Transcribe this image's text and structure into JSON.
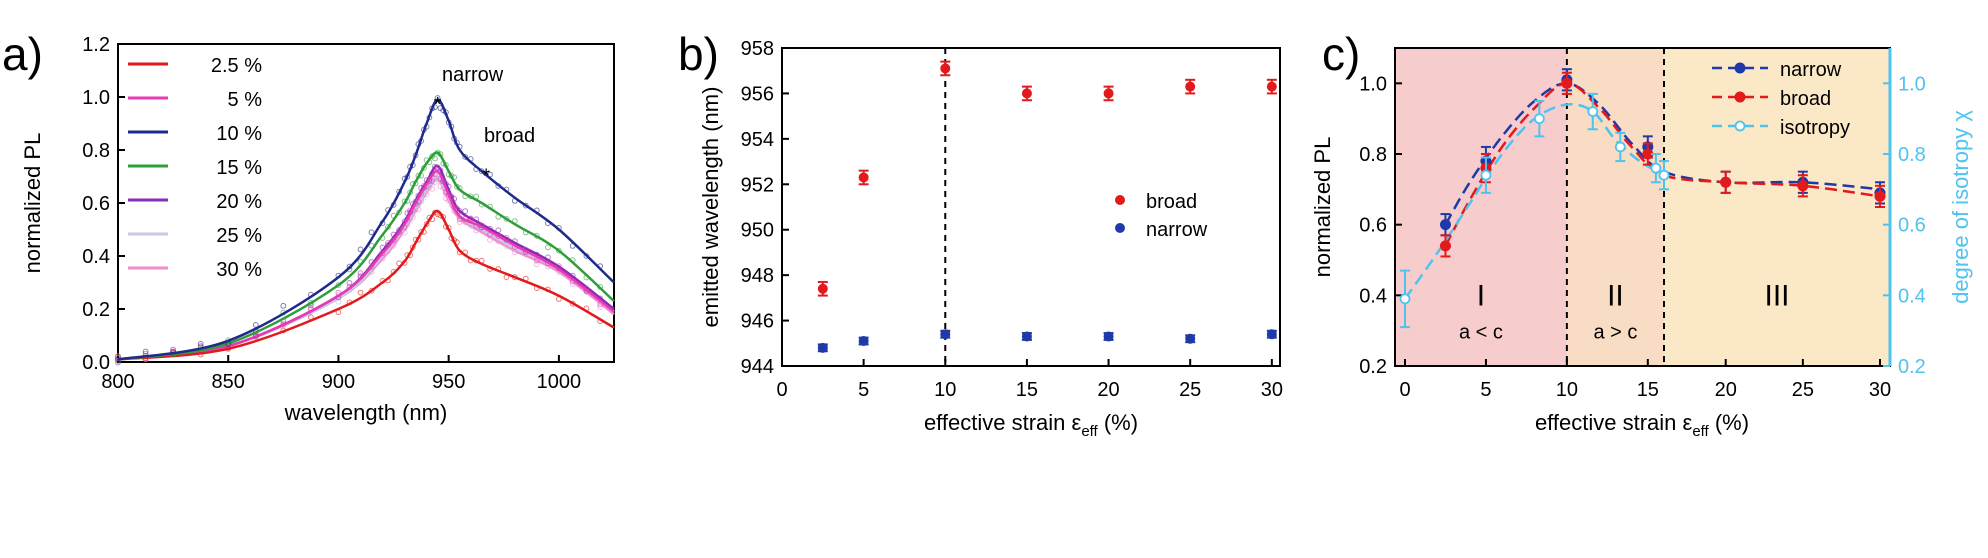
{
  "colors": {
    "red": "#e31a1c",
    "blue": "#1f3aa8",
    "light_blue": "#4fc3f0",
    "region_I": "#f7cccc",
    "region_II": "#f8dcc3",
    "region_III": "#fae8c6"
  },
  "chart_data": [
    {
      "panel": "a)",
      "type": "line",
      "xlabel": "wavelength (nm)",
      "ylabel": "normalized PL",
      "xlim": [
        800,
        1025
      ],
      "ylim": [
        0.0,
        1.2
      ],
      "xticks": [
        "800",
        "850",
        "900",
        "950",
        "1000"
      ],
      "yticks": [
        "0.0",
        "0.2",
        "0.4",
        "0.6",
        "0.8",
        "1.0",
        "1.2"
      ],
      "legend_placement": "top-left",
      "series": [
        {
          "name": "2.5 %",
          "color": "#e31a1c",
          "x": [
            800,
            850,
            900,
            920,
            930,
            935,
            940,
            945,
            950,
            955,
            965,
            980,
            1000,
            1025
          ],
          "y": [
            0.01,
            0.05,
            0.2,
            0.3,
            0.38,
            0.45,
            0.52,
            0.57,
            0.5,
            0.42,
            0.37,
            0.32,
            0.25,
            0.13
          ]
        },
        {
          "name": "5 %",
          "color": "#e83ab4",
          "x": [
            800,
            850,
            900,
            920,
            930,
            935,
            940,
            945,
            950,
            955,
            965,
            980,
            1000,
            1025
          ],
          "y": [
            0.01,
            0.06,
            0.25,
            0.41,
            0.52,
            0.6,
            0.67,
            0.72,
            0.63,
            0.55,
            0.51,
            0.44,
            0.35,
            0.19
          ]
        },
        {
          "name": "10 %",
          "color": "#1f2a8c",
          "x": [
            800,
            850,
            900,
            920,
            930,
            935,
            940,
            945,
            950,
            955,
            965,
            980,
            1000,
            1025
          ],
          "y": [
            0.01,
            0.08,
            0.32,
            0.53,
            0.68,
            0.78,
            0.9,
            0.99,
            0.91,
            0.8,
            0.72,
            0.62,
            0.5,
            0.3
          ]
        },
        {
          "name": "15 %",
          "color": "#2e9e3a",
          "x": [
            800,
            850,
            900,
            920,
            930,
            935,
            940,
            945,
            950,
            955,
            965,
            980,
            1000,
            1025
          ],
          "y": [
            0.01,
            0.07,
            0.29,
            0.48,
            0.6,
            0.68,
            0.75,
            0.79,
            0.72,
            0.65,
            0.6,
            0.52,
            0.42,
            0.23
          ]
        },
        {
          "name": "20 %",
          "color": "#8a2bb5",
          "x": [
            800,
            850,
            900,
            920,
            930,
            935,
            940,
            945,
            950,
            955,
            965,
            980,
            1000,
            1025
          ],
          "y": [
            0.01,
            0.06,
            0.25,
            0.42,
            0.53,
            0.61,
            0.68,
            0.74,
            0.65,
            0.57,
            0.52,
            0.45,
            0.36,
            0.2
          ]
        },
        {
          "name": "25 %",
          "color": "#c7c9e3",
          "x": [
            800,
            850,
            900,
            920,
            930,
            935,
            940,
            945,
            950,
            955,
            965,
            980,
            1000,
            1025
          ],
          "y": [
            0.01,
            0.06,
            0.24,
            0.4,
            0.51,
            0.58,
            0.65,
            0.7,
            0.62,
            0.55,
            0.5,
            0.43,
            0.35,
            0.19
          ]
        },
        {
          "name": "30 %",
          "color": "#f28bd2",
          "x": [
            800,
            850,
            900,
            920,
            930,
            935,
            940,
            945,
            950,
            955,
            965,
            980,
            1000,
            1025
          ],
          "y": [
            0.01,
            0.06,
            0.24,
            0.39,
            0.5,
            0.57,
            0.64,
            0.69,
            0.61,
            0.54,
            0.49,
            0.42,
            0.34,
            0.18
          ]
        }
      ],
      "annotations": [
        {
          "text": "narrow",
          "x": 947,
          "y": 1.06
        },
        {
          "text": "broad",
          "x": 966,
          "y": 0.83
        },
        {
          "text": "*",
          "x": 945,
          "y": 1.0
        },
        {
          "text": "*",
          "x": 967,
          "y": 0.73
        }
      ]
    },
    {
      "panel": "b)",
      "type": "scatter",
      "xlabel": "effective strain ε",
      "xlabel_sub": "eff",
      "xlabel_unit": " (%)",
      "ylabel": "emitted wavelength (nm)",
      "xlim": [
        0,
        30.5
      ],
      "ylim": [
        944,
        958
      ],
      "xticks": [
        "0",
        "5",
        "10",
        "15",
        "20",
        "25",
        "30"
      ],
      "yticks": [
        "944",
        "946",
        "948",
        "950",
        "952",
        "954",
        "956",
        "958"
      ],
      "vline_x": 10,
      "legend_placement": "center-right",
      "series": [
        {
          "name": "broad",
          "color": "#e31a1c",
          "x": [
            2.5,
            5,
            10,
            15,
            20,
            25,
            30
          ],
          "y": [
            947.4,
            952.3,
            957.1,
            956.0,
            956.0,
            956.3,
            956.3
          ],
          "err": [
            0.3,
            0.3,
            0.3,
            0.3,
            0.3,
            0.3,
            0.3
          ]
        },
        {
          "name": "narrow",
          "color": "#1f3aa8",
          "x": [
            2.5,
            5,
            10,
            15,
            20,
            25,
            30
          ],
          "y": [
            944.8,
            945.1,
            945.4,
            945.3,
            945.3,
            945.2,
            945.4
          ],
          "err": [
            0.15,
            0.15,
            0.15,
            0.15,
            0.15,
            0.15,
            0.15
          ]
        }
      ]
    },
    {
      "panel": "c)",
      "type": "scatter",
      "xlabel": "effective strain ε",
      "xlabel_sub": "eff",
      "xlabel_unit": " (%)",
      "ylabel": "normalized PL",
      "y2label": "degree of isotropy χ",
      "xlim": [
        -0.5,
        30.5
      ],
      "ylim": [
        0.2,
        1.1
      ],
      "y2lim": [
        0.2,
        1.1
      ],
      "xticks": [
        "0",
        "5",
        "10",
        "15",
        "20",
        "25",
        "30"
      ],
      "xtick_positions": [
        0,
        5,
        10,
        15,
        20,
        25,
        30
      ],
      "xtick_scale": "piecewise: 0-16 linear, 16-30 compressed",
      "yticks": [
        "0.2",
        "0.4",
        "0.6",
        "0.8",
        "1.0"
      ],
      "y2ticks": [
        "0.2",
        "0.4",
        "0.6",
        "0.8",
        "1.0"
      ],
      "vlines_x": [
        10,
        16
      ],
      "regions": [
        {
          "label": "I",
          "sublabel": "a < c",
          "x0": -0.5,
          "x1": 10
        },
        {
          "label": "II",
          "sublabel": "a > c",
          "x0": 10,
          "x1": 16
        },
        {
          "label": "III",
          "sublabel": "",
          "x0": 16,
          "x1": 30.5
        }
      ],
      "legend_placement": "top-right",
      "series": [
        {
          "name": "narrow",
          "color": "#1f3aa8",
          "x": [
            2.5,
            5,
            10,
            15,
            20,
            25,
            30
          ],
          "y": [
            0.6,
            0.78,
            1.01,
            0.82,
            0.72,
            0.72,
            0.69
          ],
          "err": [
            0.03,
            0.04,
            0.03,
            0.03,
            0.03,
            0.03,
            0.03
          ]
        },
        {
          "name": "broad",
          "color": "#e31a1c",
          "x": [
            2.5,
            5,
            10,
            15,
            20,
            25,
            30
          ],
          "y": [
            0.54,
            0.76,
            1.0,
            0.8,
            0.72,
            0.71,
            0.68
          ],
          "err": [
            0.03,
            0.04,
            0.03,
            0.03,
            0.03,
            0.03,
            0.03
          ]
        },
        {
          "name": "isotropy",
          "color": "#4fc3f0",
          "x": [
            0,
            5,
            8.3,
            11.6,
            13.3,
            15.5,
            16
          ],
          "y": [
            0.39,
            0.74,
            0.9,
            0.92,
            0.82,
            0.76,
            0.74
          ],
          "err": [
            0.08,
            0.05,
            0.05,
            0.05,
            0.04,
            0.04,
            0.04
          ]
        }
      ],
      "fits": [
        {
          "series": "narrow",
          "color": "#1f3aa8",
          "x": [
            2.5,
            4,
            6,
            8,
            10,
            12,
            14,
            16,
            20,
            25,
            30
          ],
          "y": [
            0.6,
            0.72,
            0.85,
            0.95,
            1.0,
            0.94,
            0.83,
            0.75,
            0.72,
            0.72,
            0.7
          ]
        },
        {
          "series": "broad",
          "color": "#e31a1c",
          "x": [
            2.5,
            4,
            6,
            8,
            10,
            12,
            14,
            16,
            20,
            25,
            30
          ],
          "y": [
            0.54,
            0.67,
            0.82,
            0.93,
            1.0,
            0.93,
            0.82,
            0.74,
            0.72,
            0.71,
            0.68
          ]
        },
        {
          "series": "isotropy",
          "color": "#4fc3f0",
          "x": [
            0,
            2,
            4,
            6,
            8,
            10,
            11.6,
            13,
            14.5,
            16
          ],
          "y": [
            0.39,
            0.52,
            0.66,
            0.8,
            0.9,
            0.94,
            0.92,
            0.84,
            0.78,
            0.74
          ]
        }
      ]
    }
  ]
}
